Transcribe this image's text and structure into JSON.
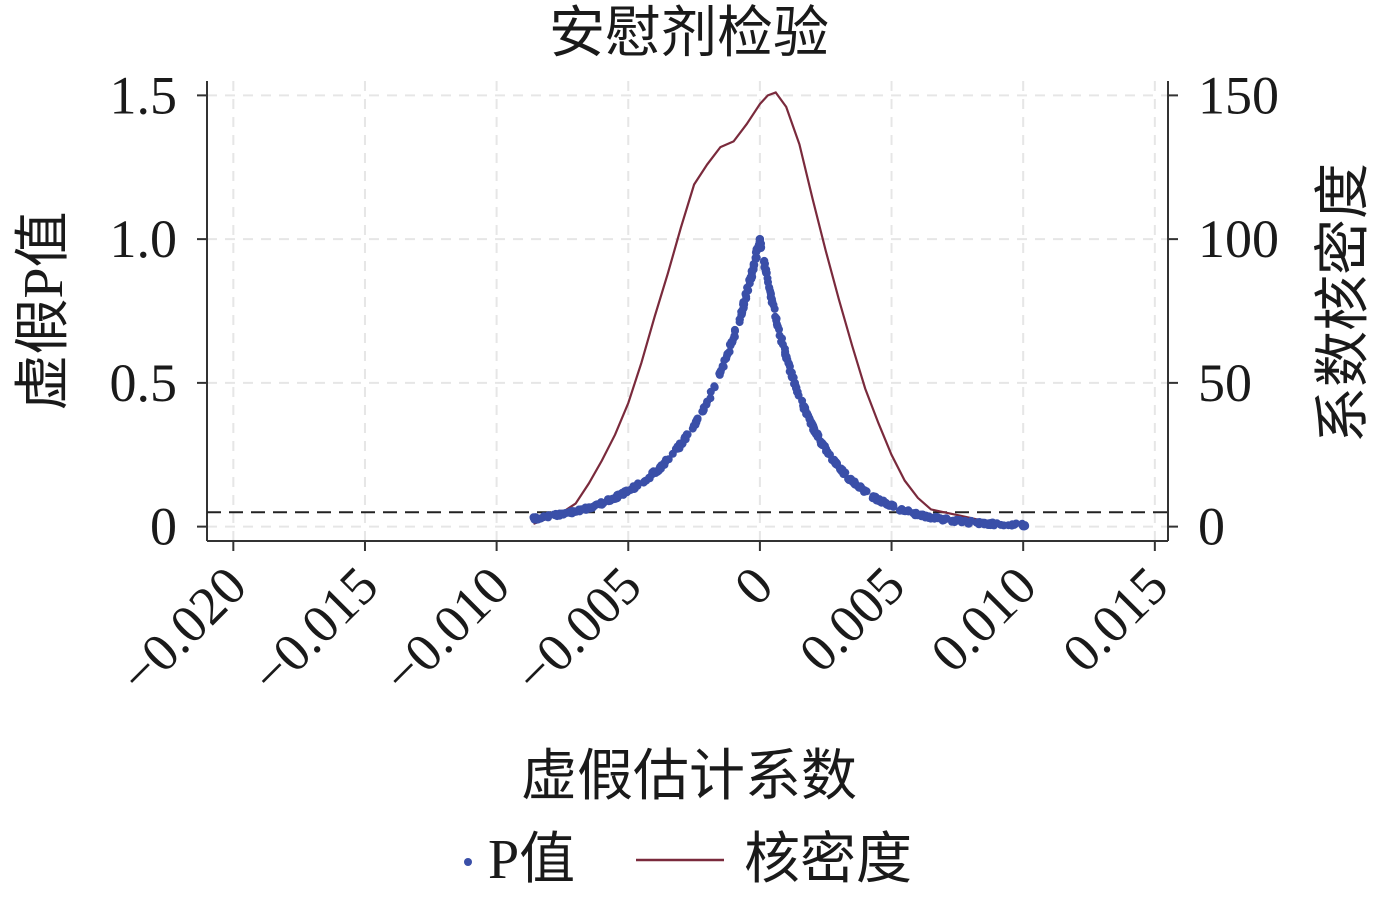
{
  "chart_data": {
    "type": "scatter",
    "title": "安慰剂检验",
    "xlabel": "虚假估计系数",
    "ylabel": "虚假P值",
    "y2label": "系数核密度",
    "xlim": [
      -0.021,
      0.0155
    ],
    "ylim": [
      -0.05,
      1.55
    ],
    "y2lim": [
      -5,
      155
    ],
    "x_ticks": [
      -0.02,
      -0.015,
      -0.01,
      -0.005,
      0,
      0.005,
      0.01,
      0.015
    ],
    "x_tick_labels": [
      "−0.020",
      "−0.015",
      "−0.010",
      "−0.005",
      "0",
      "0.005",
      "0.010",
      "0.015"
    ],
    "y_ticks": [
      0,
      0.5,
      1.0,
      1.5
    ],
    "y_tick_labels": [
      "0",
      "0.5",
      "1.0",
      "1.5"
    ],
    "y2_ticks": [
      0,
      50,
      100,
      150
    ],
    "y2_tick_labels": [
      "0",
      "50",
      "100",
      "150"
    ],
    "reference_line_y": 0.05,
    "grid": true,
    "legend_position": "bottom",
    "series": [
      {
        "name": "P值",
        "kind": "scatter",
        "axis": "left",
        "color": "#3a4fa8",
        "peak_x": 0.0,
        "peak_y": 1.0,
        "x_range": [
          -0.0086,
          0.0102
        ]
      },
      {
        "name": "核密度",
        "kind": "line",
        "axis": "right",
        "color": "#7a2a3c",
        "x": [
          -0.0086,
          -0.008,
          -0.0075,
          -0.007,
          -0.0065,
          -0.006,
          -0.0055,
          -0.005,
          -0.0045,
          -0.004,
          -0.0035,
          -0.003,
          -0.0025,
          -0.002,
          -0.0015,
          -0.001,
          -0.0005,
          0.0,
          0.0003,
          0.0006,
          0.001,
          0.0015,
          0.002,
          0.0025,
          0.003,
          0.0035,
          0.004,
          0.0045,
          0.005,
          0.0055,
          0.006,
          0.0065,
          0.007,
          0.0075,
          0.008,
          0.0085,
          0.009,
          0.0095,
          0.01
        ],
        "y": [
          1,
          3,
          5,
          8,
          15,
          23,
          32,
          43,
          57,
          73,
          88,
          104,
          119,
          126,
          132,
          134,
          140,
          147,
          150,
          151,
          146,
          133,
          114,
          96,
          79,
          63,
          48,
          36,
          25,
          16,
          10,
          6,
          5,
          4,
          3,
          2,
          1.5,
          1,
          1
        ]
      }
    ]
  }
}
